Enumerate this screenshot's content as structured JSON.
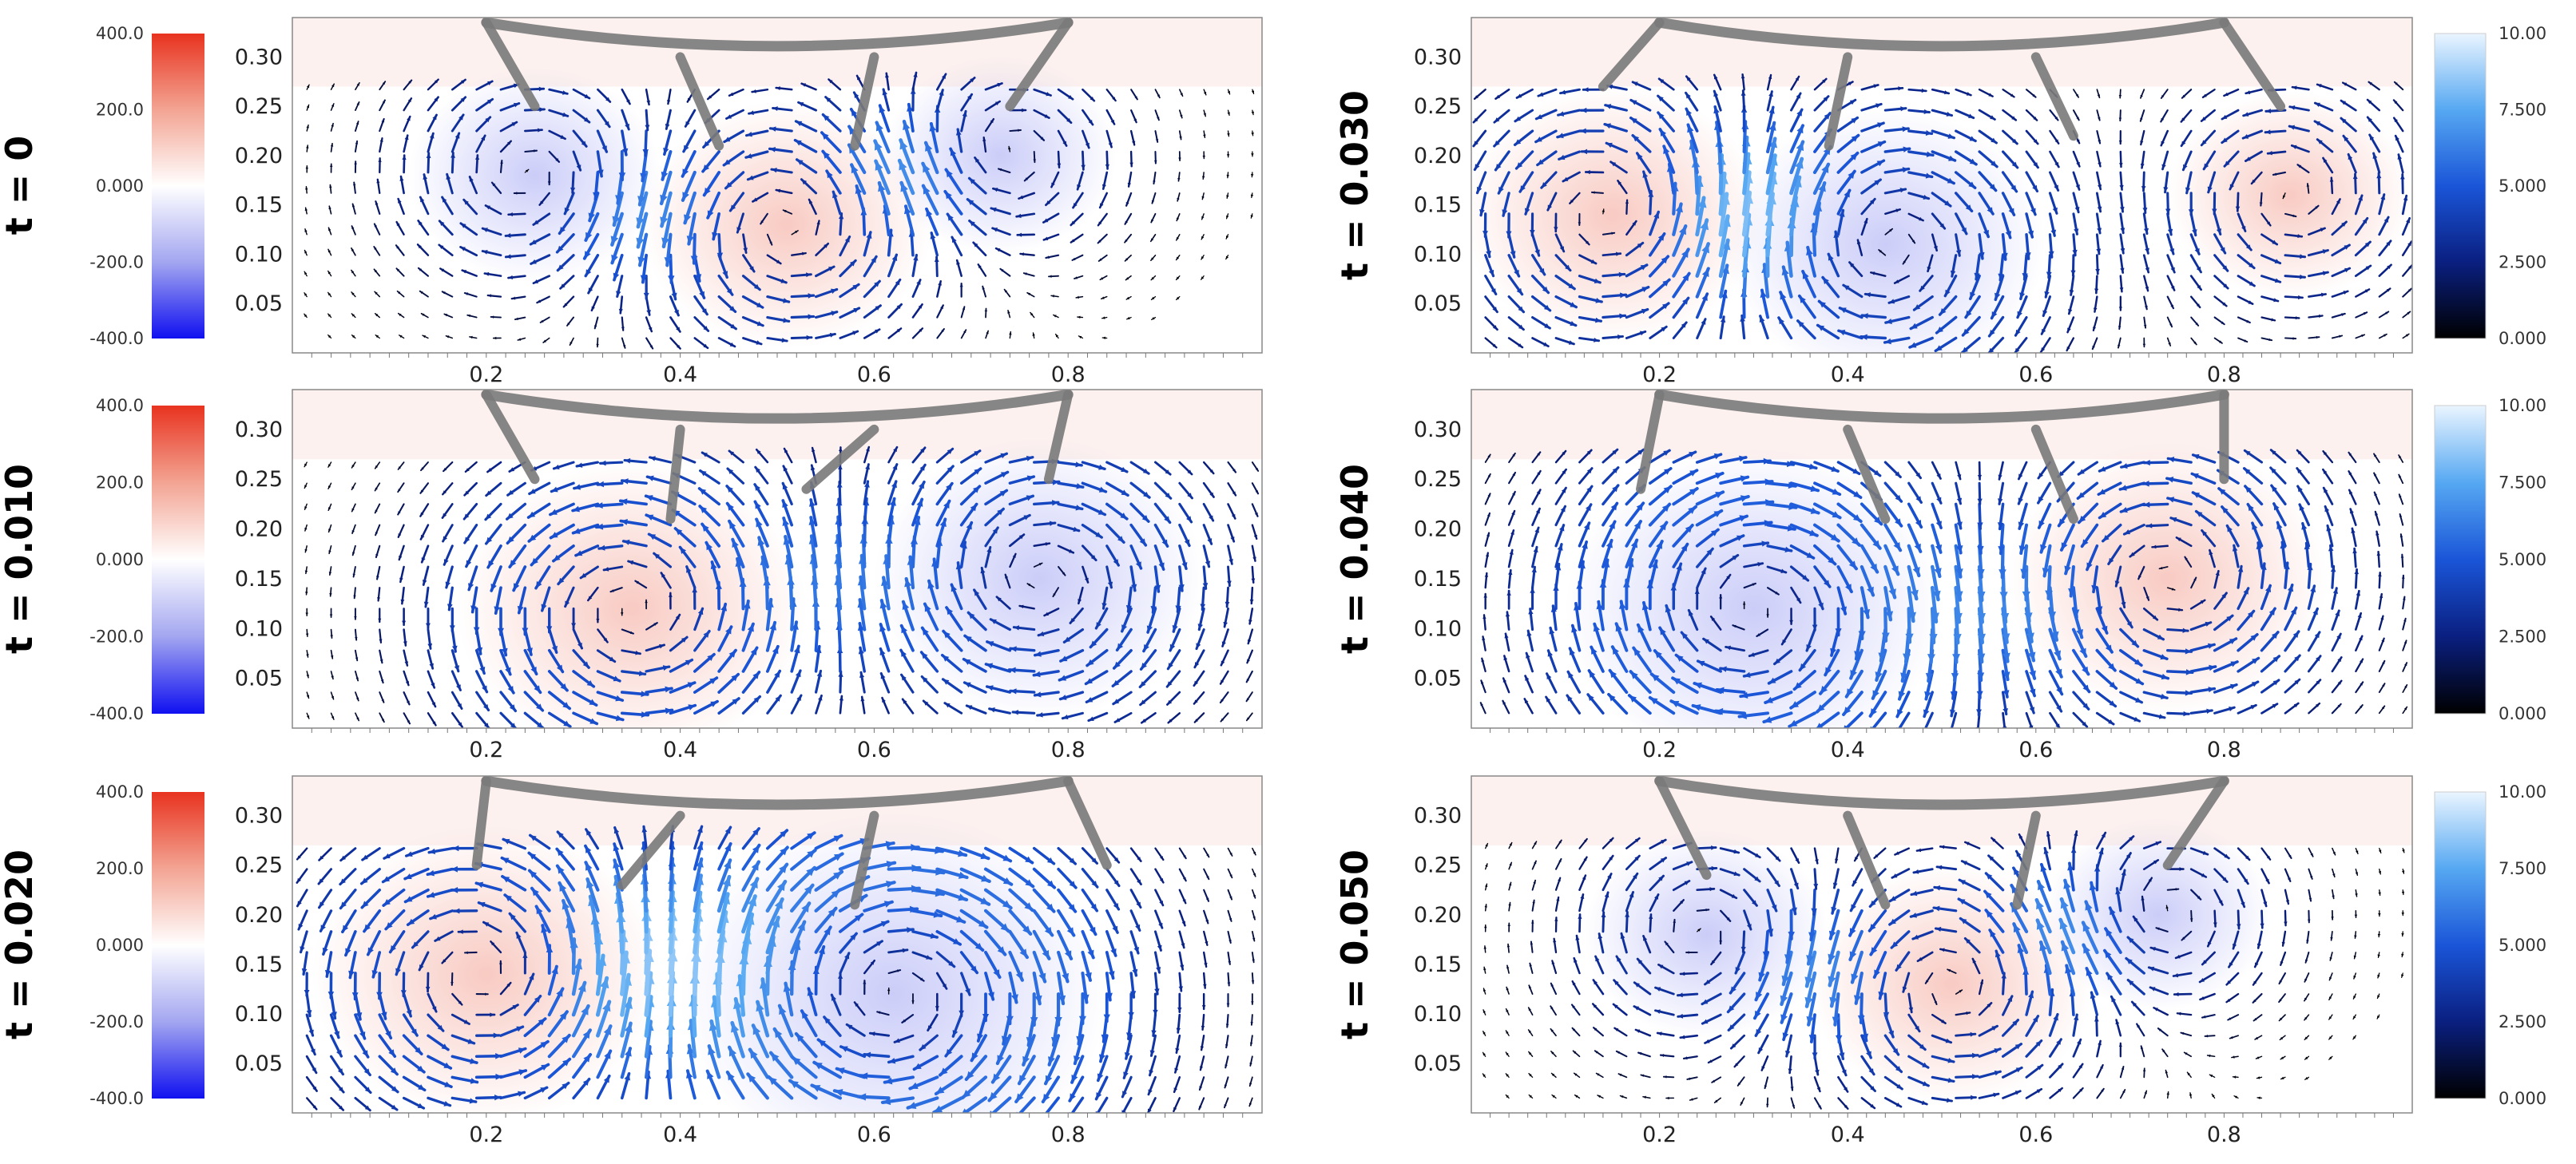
{
  "chart_data": {
    "type": "vector-field",
    "colorbars": {
      "vorticity": {
        "ticks": [
          "400.0",
          "200.0",
          "0.000",
          "-200.0",
          "-400.0"
        ],
        "range": [
          -400,
          400
        ],
        "colors": [
          "#e8331f",
          "#f3a493",
          "#ffffff",
          "#a3a6f0",
          "#1010f0"
        ]
      },
      "speed": {
        "ticks": [
          "10.00",
          "7.500",
          "5.000",
          "2.500",
          "0.000"
        ],
        "range": [
          0,
          10
        ],
        "colors": [
          "#eaf5ff",
          "#56a8f2",
          "#1a55d8",
          "#0a1f80",
          "#000000"
        ]
      }
    },
    "axes": {
      "xticks": [
        "0.2",
        "0.4",
        "0.6",
        "0.8"
      ],
      "xtick_values": [
        0.2,
        0.4,
        0.6,
        0.8
      ],
      "yticks": [
        "0.30",
        "0.25",
        "0.20",
        "0.15",
        "0.10",
        "0.05"
      ],
      "ytick_values": [
        0.3,
        0.25,
        0.2,
        0.15,
        0.1,
        0.05
      ],
      "xlim": [
        0.0,
        1.0
      ],
      "ylim": [
        0.0,
        0.34
      ]
    },
    "panels": [
      {
        "time_label": "t = 0",
        "legend": "vorticity",
        "links": [
          [
            0.2,
            0.335,
            0.25,
            0.25
          ],
          [
            0.4,
            0.3,
            0.44,
            0.21
          ],
          [
            0.6,
            0.3,
            0.58,
            0.21
          ],
          [
            0.8,
            0.335,
            0.74,
            0.25
          ]
        ],
        "vortices": [
          {
            "x": 0.25,
            "y": 0.18,
            "strength": -1,
            "r": 0.13
          },
          {
            "x": 0.51,
            "y": 0.13,
            "strength": 1,
            "r": 0.15
          },
          {
            "x": 0.73,
            "y": 0.2,
            "strength": -1,
            "r": 0.12
          }
        ]
      },
      {
        "time_label": "t = 0.010",
        "legend": "vorticity",
        "links": [
          [
            0.2,
            0.335,
            0.25,
            0.25
          ],
          [
            0.4,
            0.3,
            0.39,
            0.21
          ],
          [
            0.6,
            0.3,
            0.53,
            0.24
          ],
          [
            0.8,
            0.335,
            0.78,
            0.25
          ]
        ],
        "vortices": [
          {
            "x": 0.35,
            "y": 0.12,
            "strength": 1,
            "r": 0.18
          },
          {
            "x": 0.77,
            "y": 0.15,
            "strength": -1,
            "r": 0.17
          }
        ]
      },
      {
        "time_label": "t = 0.020",
        "legend": "vorticity",
        "links": [
          [
            0.2,
            0.335,
            0.19,
            0.25
          ],
          [
            0.4,
            0.3,
            0.34,
            0.23
          ],
          [
            0.6,
            0.3,
            0.58,
            0.21
          ],
          [
            0.8,
            0.335,
            0.84,
            0.25
          ]
        ],
        "vortices": [
          {
            "x": 0.2,
            "y": 0.14,
            "strength": 1,
            "r": 0.18
          },
          {
            "x": 0.62,
            "y": 0.12,
            "strength": -1,
            "r": 0.22
          }
        ]
      },
      {
        "time_label": "t = 0.030",
        "legend": "speed",
        "links": [
          [
            0.2,
            0.335,
            0.14,
            0.27
          ],
          [
            0.4,
            0.3,
            0.38,
            0.21
          ],
          [
            0.6,
            0.3,
            0.64,
            0.22
          ],
          [
            0.8,
            0.335,
            0.86,
            0.25
          ]
        ],
        "vortices": [
          {
            "x": 0.15,
            "y": 0.14,
            "strength": 1,
            "r": 0.16
          },
          {
            "x": 0.44,
            "y": 0.11,
            "strength": -1,
            "r": 0.17
          },
          {
            "x": 0.87,
            "y": 0.16,
            "strength": 1,
            "r": 0.13
          }
        ]
      },
      {
        "time_label": "t = 0.040",
        "legend": "speed",
        "links": [
          [
            0.2,
            0.335,
            0.18,
            0.24
          ],
          [
            0.4,
            0.3,
            0.44,
            0.21
          ],
          [
            0.6,
            0.3,
            0.64,
            0.21
          ],
          [
            0.8,
            0.335,
            0.8,
            0.25
          ]
        ],
        "vortices": [
          {
            "x": 0.3,
            "y": 0.12,
            "strength": -1,
            "r": 0.2
          },
          {
            "x": 0.74,
            "y": 0.15,
            "strength": 1,
            "r": 0.17
          }
        ]
      },
      {
        "time_label": "t = 0.050",
        "legend": "speed",
        "links": [
          [
            0.2,
            0.335,
            0.25,
            0.24
          ],
          [
            0.4,
            0.3,
            0.44,
            0.21
          ],
          [
            0.6,
            0.3,
            0.58,
            0.21
          ],
          [
            0.8,
            0.335,
            0.74,
            0.25
          ]
        ],
        "vortices": [
          {
            "x": 0.25,
            "y": 0.18,
            "strength": -1,
            "r": 0.13
          },
          {
            "x": 0.51,
            "y": 0.13,
            "strength": 1,
            "r": 0.15
          },
          {
            "x": 0.73,
            "y": 0.2,
            "strength": -1,
            "r": 0.12
          }
        ]
      }
    ]
  }
}
